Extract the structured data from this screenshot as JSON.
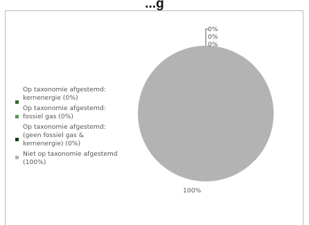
{
  "chart_data": {
    "type": "pie",
    "title": "",
    "categories": [
      "Op taxonomie afgestemd: kernenergie (0%)",
      "Op taxonomie afgestemd: fossiel gas (0%)",
      "Op taxonomie afgestemd: (geen fossiel gas & kernenergie) (0%)",
      "Niet op taxonomie afgestemd (100%)"
    ],
    "values": [
      0,
      0,
      0,
      100
    ],
    "data_labels": [
      "0%",
      "0%",
      "0%",
      "100%"
    ],
    "colors": [
      "#2e6b2e",
      "#4f9a4f",
      "#173f17",
      "#b3b3b3"
    ],
    "legend_position": "left"
  },
  "title_text": "...g"
}
